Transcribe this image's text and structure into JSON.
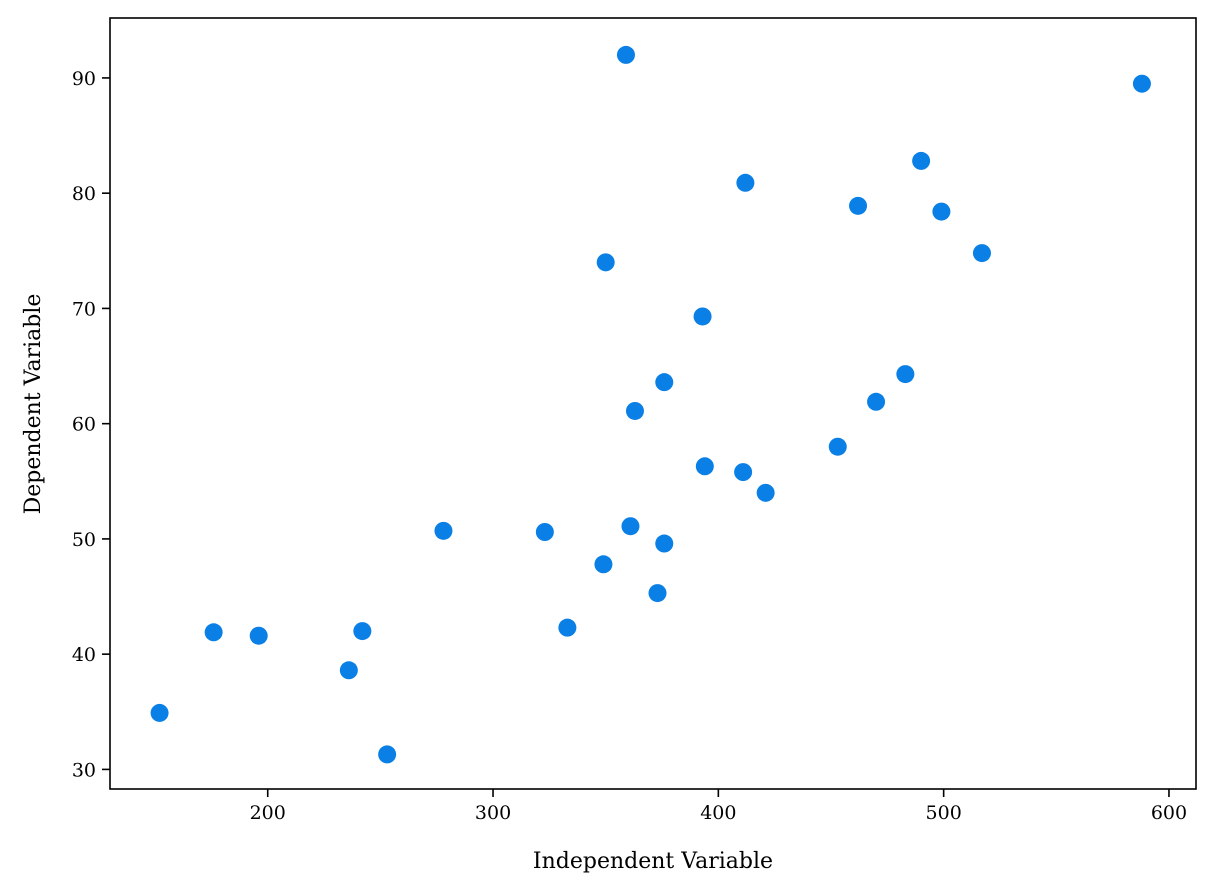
{
  "chart_data": {
    "type": "scatter",
    "title": "",
    "xlabel": "Independent Variable",
    "ylabel": "Dependent Variable",
    "xlim": [
      130,
      612
    ],
    "ylim": [
      28.3,
      95.2
    ],
    "xticks": [
      200,
      300,
      400,
      500,
      600
    ],
    "yticks": [
      30,
      40,
      50,
      60,
      70,
      80,
      90
    ],
    "grid": false,
    "legend": "none",
    "color": "#0a7fe6",
    "points": [
      {
        "x": 152,
        "y": 34.9
      },
      {
        "x": 176,
        "y": 41.9
      },
      {
        "x": 196,
        "y": 41.6
      },
      {
        "x": 236,
        "y": 38.6
      },
      {
        "x": 242,
        "y": 42.0
      },
      {
        "x": 253,
        "y": 31.3
      },
      {
        "x": 278,
        "y": 50.7
      },
      {
        "x": 323,
        "y": 50.6
      },
      {
        "x": 333,
        "y": 42.3
      },
      {
        "x": 349,
        "y": 47.8
      },
      {
        "x": 350,
        "y": 74.0
      },
      {
        "x": 359,
        "y": 92.0
      },
      {
        "x": 361,
        "y": 51.1
      },
      {
        "x": 363,
        "y": 61.1
      },
      {
        "x": 373,
        "y": 45.3
      },
      {
        "x": 376,
        "y": 49.6
      },
      {
        "x": 376,
        "y": 63.6
      },
      {
        "x": 393,
        "y": 69.3
      },
      {
        "x": 394,
        "y": 56.3
      },
      {
        "x": 411,
        "y": 55.8
      },
      {
        "x": 412,
        "y": 80.9
      },
      {
        "x": 421,
        "y": 54.0
      },
      {
        "x": 453,
        "y": 58.0
      },
      {
        "x": 462,
        "y": 78.9
      },
      {
        "x": 470,
        "y": 61.9
      },
      {
        "x": 483,
        "y": 64.3
      },
      {
        "x": 490,
        "y": 82.8
      },
      {
        "x": 499,
        "y": 78.4
      },
      {
        "x": 517,
        "y": 74.8
      },
      {
        "x": 588,
        "y": 89.5
      }
    ]
  }
}
